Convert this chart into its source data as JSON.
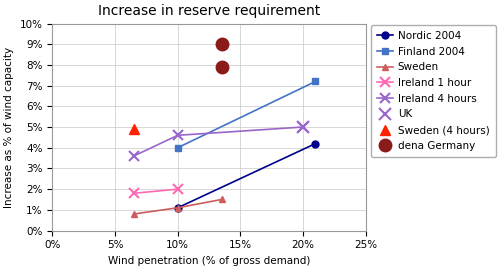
{
  "title": "Increase in reserve requirement",
  "xlabel": "Wind penetration (% of gross demand)",
  "ylabel": "Increase as % of wind capacity",
  "xlim": [
    0,
    0.25
  ],
  "ylim": [
    0,
    0.1
  ],
  "xticks": [
    0.0,
    0.05,
    0.1,
    0.15,
    0.2,
    0.25
  ],
  "yticks": [
    0.0,
    0.01,
    0.02,
    0.03,
    0.04,
    0.05,
    0.06,
    0.07,
    0.08,
    0.09,
    0.1
  ],
  "series": [
    {
      "label": "Nordic 2004",
      "x": [
        0.1,
        0.21
      ],
      "y": [
        0.011,
        0.042
      ],
      "color": "#00008B",
      "marker": "o",
      "linestyle": "-",
      "markersize": 5,
      "linewidth": 1.2,
      "zorder": 5,
      "filled": true
    },
    {
      "label": "Finland 2004",
      "x": [
        0.1,
        0.21
      ],
      "y": [
        0.04,
        0.072
      ],
      "color": "#4472C4",
      "marker": "s",
      "linestyle": "-",
      "markersize": 5,
      "linewidth": 1.2,
      "zorder": 5,
      "filled": true
    },
    {
      "label": "Sweden",
      "x": [
        0.065,
        0.1,
        0.135
      ],
      "y": [
        0.008,
        0.011,
        0.015
      ],
      "color": "#CD5C5C",
      "marker": "^",
      "linestyle": "-",
      "markersize": 5,
      "linewidth": 1.2,
      "zorder": 5,
      "filled": true
    },
    {
      "label": "Ireland 1 hour",
      "x": [
        0.065,
        0.1
      ],
      "y": [
        0.018,
        0.02
      ],
      "color": "#FF69B4",
      "marker": "x",
      "linestyle": "-",
      "markersize": 7,
      "linewidth": 1.2,
      "zorder": 5,
      "filled": false
    },
    {
      "label": "Ireland 4 hours",
      "x": [
        0.065,
        0.1,
        0.2
      ],
      "y": [
        0.036,
        0.046,
        0.05
      ],
      "color": "#9966CC",
      "marker": "x",
      "linestyle": "-",
      "markersize": 7,
      "linewidth": 1.2,
      "zorder": 5,
      "filled": false
    },
    {
      "label": "UK",
      "x": [
        0.2
      ],
      "y": [
        0.05
      ],
      "color": "#9966CC",
      "marker": "x",
      "linestyle": "None",
      "markersize": 9,
      "linewidth": 1.5,
      "zorder": 5,
      "filled": false
    },
    {
      "label": "Sweden (4 hours)",
      "x": [
        0.065
      ],
      "y": [
        0.049
      ],
      "color": "#FF2200",
      "marker": "^",
      "linestyle": "None",
      "markersize": 7,
      "linewidth": 1.5,
      "zorder": 5,
      "filled": true
    },
    {
      "label": "dena Germany",
      "x": [
        0.135,
        0.135
      ],
      "y": [
        0.079,
        0.09
      ],
      "color": "#8B1A1A",
      "marker": "o",
      "linestyle": "None",
      "markersize": 9,
      "linewidth": 1.5,
      "zorder": 5,
      "filled": true
    }
  ],
  "background_color": "#FFFFFF",
  "plot_bg_color": "#FFFFFF",
  "grid_color": "#C8C8C8",
  "legend_fontsize": 7.5,
  "axis_fontsize": 7.5,
  "title_fontsize": 10
}
